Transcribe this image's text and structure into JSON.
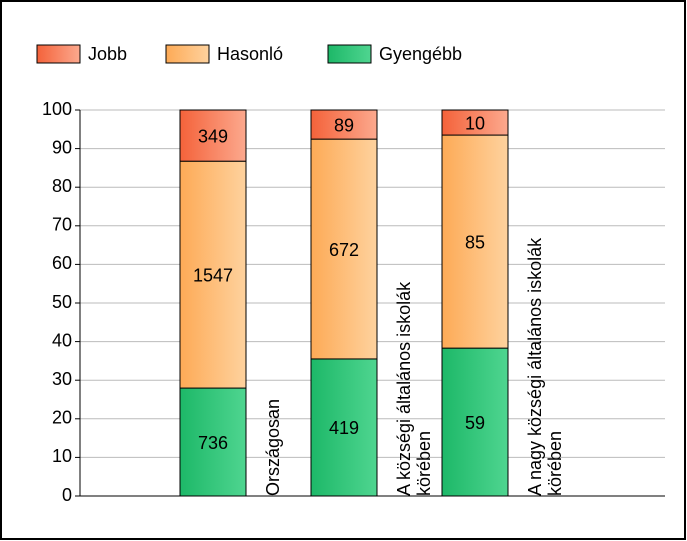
{
  "chart_data": {
    "type": "stacked_percent_bar",
    "categories": [
      "Országosan",
      "A községi általános iskolák körében",
      "A nagy községi általános iskolák körében"
    ],
    "series": [
      {
        "name": "Gyengébb",
        "color": [
          "#1db868",
          "#4fd590"
        ],
        "values": [
          736,
          419,
          59
        ]
      },
      {
        "name": "Hasonló",
        "color": [
          "#fdaa56",
          "#fed29e"
        ],
        "values": [
          1547,
          672,
          85
        ]
      },
      {
        "name": "Jobb",
        "color": [
          "#f4623a",
          "#fca98e"
        ],
        "values": [
          349,
          89,
          10
        ]
      }
    ],
    "legend_order": [
      2,
      1,
      0
    ],
    "ylim": [
      0,
      100
    ],
    "yticks": [
      0,
      10,
      20,
      30,
      40,
      50,
      60,
      70,
      80,
      90,
      100
    ],
    "grid": true
  }
}
